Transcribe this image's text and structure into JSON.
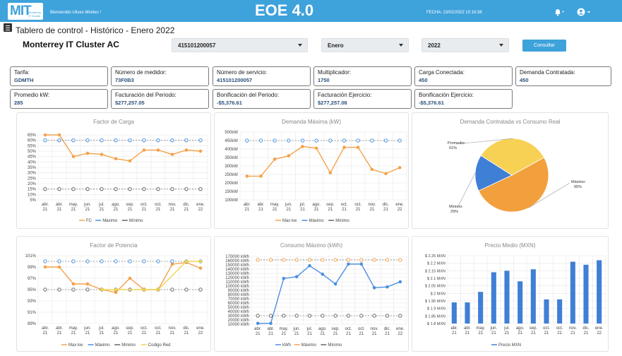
{
  "header": {
    "logo_text": "MIT",
    "logo_sub": "Monterrey IT Cluster",
    "welcome": "Bienvenido Ulises Mireles !",
    "app_title": "EOE 4.0",
    "fecha": "FECHA: 23/02/2022 10:19:36"
  },
  "page": {
    "title": "Tablero de control - Histórico - Enero 2022",
    "company": "Monterrey IT Cluster AC"
  },
  "filters": {
    "service": "415101200057",
    "month": "Enero",
    "year": "2022",
    "button": "Consultar"
  },
  "cards": [
    {
      "label": "Tarifa:",
      "value": "GDMTH"
    },
    {
      "label": "Número de medidor:",
      "value": "73F0B3"
    },
    {
      "label": "Número de servicio:",
      "value": "415101200057"
    },
    {
      "label": "Multiplicador:",
      "value": "1750"
    },
    {
      "label": "Carga Conectada:",
      "value": "450"
    },
    {
      "label": "Demanda Contratada:",
      "value": "450"
    },
    {
      "label": "Promedio kW:",
      "value": "285"
    },
    {
      "label": "Facturación del Periodo:",
      "value": "$277,257.05"
    },
    {
      "label": "Bonificación del Periodo:",
      "value": "-$5,376.61"
    },
    {
      "label": "Facturación Ejercicio:",
      "value": "$277,257.08"
    },
    {
      "label": "Bonificación Ejercicio:",
      "value": "-$5,376.61"
    }
  ],
  "chart_data": [
    {
      "type": "line",
      "title": "Factor de Carga",
      "categories": [
        "abr. 21",
        "abr. 21",
        "may. 21",
        "jun. 21",
        "jul. 21",
        "ago. 21",
        "sep. 21",
        "oct. 21",
        "oct. 21",
        "nov. 21",
        "dic. 21",
        "ene. 22"
      ],
      "yticks": [
        "5%",
        "10%",
        "15%",
        "20%",
        "25%",
        "30%",
        "35%",
        "40%",
        "45%",
        "50%",
        "55%",
        "60%",
        "65%"
      ],
      "ylim": [
        5,
        65
      ],
      "series": [
        {
          "name": "FC",
          "color": "#f4a24b",
          "values": [
            65,
            65,
            45,
            48,
            47,
            43,
            41,
            51,
            51,
            47,
            51,
            50
          ]
        },
        {
          "name": "Máximo",
          "color": "#4a8fe0",
          "dashed": true,
          "values": [
            60,
            60,
            60,
            60,
            60,
            60,
            60,
            60,
            60,
            60,
            60,
            60
          ]
        },
        {
          "name": "Mínimo",
          "color": "#666666",
          "dashed": true,
          "values": [
            15,
            15,
            15,
            15,
            15,
            15,
            15,
            15,
            15,
            15,
            15,
            15
          ]
        }
      ]
    },
    {
      "type": "line",
      "title": "Demanda Máxima (kW)",
      "categories": [
        "abr. 21",
        "abr. 21",
        "may. 21",
        "jun. 21",
        "jul. 21",
        "ago. 21",
        "sep. 21",
        "oct. 21",
        "oct. 21",
        "nov. 21",
        "dic. 21",
        "ene. 22"
      ],
      "yticks": [
        "100kW",
        "150kW",
        "200kW",
        "250kW",
        "300kW",
        "350kW",
        "400kW",
        "450kW",
        "500kW"
      ],
      "ylim": [
        100,
        500
      ],
      "series": [
        {
          "name": "Max kw",
          "color": "#f4a24b",
          "values": [
            240,
            240,
            340,
            360,
            415,
            405,
            260,
            410,
            410,
            280,
            255,
            290
          ]
        },
        {
          "name": "Máximo",
          "color": "#4a8fe0",
          "dashed": true,
          "values": [
            450,
            450,
            450,
            450,
            450,
            450,
            450,
            450,
            450,
            450,
            450,
            450
          ]
        },
        {
          "name": "Mínimo",
          "color": "#666666",
          "dashed": true,
          "values": [
            null,
            null,
            null,
            null,
            null,
            null,
            null,
            null,
            null,
            null,
            null,
            null
          ]
        }
      ]
    },
    {
      "type": "pie",
      "title": "Demanda Contratada vs Consumo Real",
      "slices": [
        {
          "label": "Máximo",
          "value": "95%",
          "color": "#f2a03d",
          "share": 0.51
        },
        {
          "label": "Mínimo",
          "value": "29%",
          "color": "#3f7fd6",
          "share": 0.16
        },
        {
          "label": "Promedio",
          "value": "61%",
          "color": "#f7d154",
          "share": 0.33
        }
      ]
    },
    {
      "type": "line",
      "title": "Factor de Potencia",
      "categories": [
        "abr. 21",
        "abr. 21",
        "may. 21",
        "jun. 21",
        "jul. 21",
        "ago. 21",
        "sep. 21",
        "oct. 21",
        "oct. 21",
        "nov. 21",
        "dic. 21",
        "ene. 22"
      ],
      "yticks": [
        "89%",
        "91%",
        "93%",
        "95%",
        "97%",
        "99%",
        "101%"
      ],
      "ylim": [
        89,
        101
      ],
      "series": [
        {
          "name": "Max kw",
          "color": "#f4a24b",
          "values": [
            99,
            99,
            96,
            96,
            95,
            94.5,
            97,
            95,
            95,
            99.5,
            99.8,
            98.8
          ]
        },
        {
          "name": "Máximo",
          "color": "#4a8fe0",
          "dashed": true,
          "values": [
            100,
            100,
            100,
            100,
            100,
            100,
            100,
            100,
            100,
            100,
            100,
            100
          ]
        },
        {
          "name": "Mínimo",
          "color": "#666666",
          "dashed": true,
          "values": [
            95,
            95,
            95,
            95,
            95,
            95,
            95,
            95,
            95,
            95,
            95,
            95
          ]
        },
        {
          "name": "Codigo Red",
          "color": "#f0d64f",
          "values": [
            null,
            null,
            null,
            null,
            95,
            95,
            null,
            95,
            95,
            null,
            100,
            100
          ]
        }
      ]
    },
    {
      "type": "line",
      "title": "Consumo Máximo (kWh)",
      "categories": [
        "abr. 21",
        "abr. 21",
        "may. 21",
        "jun. 21",
        "jul. 21",
        "ago. 21",
        "sep. 21",
        "oct. 21",
        "oct. 21",
        "nov. 21",
        "dic. 21",
        "ene. 22"
      ],
      "yticks": [
        "10000 kWh",
        "20000 kWh",
        "30000 kWh",
        "40000 kWh",
        "50000 kWh",
        "60000 kWh",
        "70000 kWh",
        "80000 kWh",
        "90000 kWh",
        "100000 kWh",
        "110000 kWh",
        "120000 kWh",
        "130000 kWh",
        "140000 kWh",
        "150000 kWh",
        "160000 kWh",
        "170000 kWh"
      ],
      "ylim": [
        10000,
        170000
      ],
      "series": [
        {
          "name": "kWh",
          "color": "#4a8fe0",
          "values": [
            12000,
            12000,
            118000,
            122000,
            148000,
            128000,
            105000,
            152000,
            152000,
            96000,
            98000,
            110000
          ]
        },
        {
          "name": "Máximo",
          "color": "#f4a24b",
          "dashed": true,
          "values": [
            162000,
            162000,
            162000,
            162000,
            162000,
            162000,
            162000,
            162000,
            162000,
            162000,
            162000,
            162000
          ]
        },
        {
          "name": "Mínimo",
          "color": "#666666",
          "dashed": true,
          "values": [
            30000,
            30000,
            30000,
            30000,
            30000,
            30000,
            30000,
            30000,
            30000,
            30000,
            30000,
            30000
          ]
        }
      ]
    },
    {
      "type": "bar",
      "title": "Precio Medio (MXN)",
      "categories": [
        "abr. 21",
        "abr. 21",
        "may. 21",
        "jun. 21",
        "jul. 21",
        "ago. 21",
        "sep. 21",
        "oct. 21",
        "oct. 21",
        "nov. 21",
        "dic. 21",
        "ene. 22"
      ],
      "yticks": [
        "$ 1.8 MXN",
        "$ 1.85 MXN",
        "$ 1.9 MXN",
        "$ 1.95 MXN",
        "$ 2 MXN",
        "$ 2.05 MXN",
        "$ 2.1 MXN",
        "$ 2.15 MXN",
        "$ 2.2 MXN",
        "$ 2.25 MXN"
      ],
      "ylim": [
        1.8,
        2.25
      ],
      "series": [
        {
          "name": "Precio MXN",
          "color": "#3f7fd6",
          "values": [
            1.94,
            1.94,
            2.01,
            2.14,
            2.15,
            2.08,
            2.16,
            1.96,
            1.96,
            2.21,
            2.19,
            2.22
          ]
        }
      ]
    }
  ]
}
